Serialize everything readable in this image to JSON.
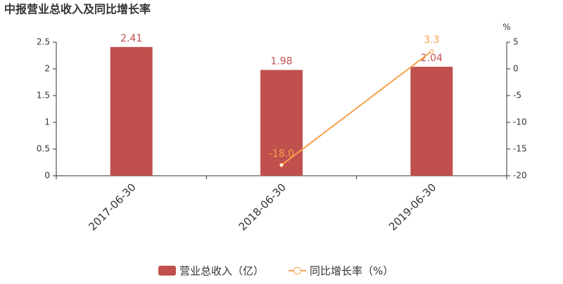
{
  "chart_data": {
    "type": "bar-line",
    "title": "中报营业总收入及同比增长率",
    "y2_label": "%",
    "categories": [
      "2017-06-30",
      "2018-06-30",
      "2019-06-30"
    ],
    "series": [
      {
        "name": "营业总收入（亿）",
        "type": "bar",
        "color": "#c0504d",
        "values": [
          2.41,
          1.98,
          2.04
        ]
      },
      {
        "name": "同比增长率（%）",
        "type": "line",
        "axis": "y2",
        "color": "#f5a14a",
        "values": [
          null,
          -18,
          3.3
        ],
        "value_labels": [
          null,
          "-18.0",
          "3.3"
        ]
      }
    ],
    "ylim": [
      0,
      2.5
    ],
    "yticks": [
      0,
      0.5,
      1,
      1.5,
      2,
      2.5
    ],
    "y2lim": [
      -20,
      5
    ],
    "y2ticks": [
      -20,
      -15,
      -10,
      -5,
      0,
      5
    ],
    "grid": false,
    "legend": "bottom"
  }
}
